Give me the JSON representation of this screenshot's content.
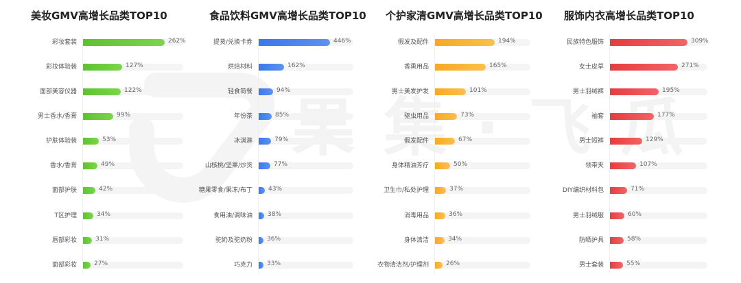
{
  "watermark": {
    "text": "果集·飞瓜",
    "logo_icon": "guoji-feigua-logo-icon"
  },
  "panels": [
    {
      "title": "美妆GMV高增长品类TOP10",
      "color_start": "#5dc12f",
      "color_end": "#7ad64a",
      "items": [
        {
          "label": "彩妆套装",
          "value": "262%"
        },
        {
          "label": "彩妆体验装",
          "value": "127%"
        },
        {
          "label": "面部美容仪器",
          "value": "122%"
        },
        {
          "label": "男士香水/香膏",
          "value": "99%"
        },
        {
          "label": "护肤体验装",
          "value": "53%"
        },
        {
          "label": "香水/香膏",
          "value": "49%"
        },
        {
          "label": "面部护肤",
          "value": "42%"
        },
        {
          "label": "T区护理",
          "value": "34%"
        },
        {
          "label": "唇部彩妆",
          "value": "31%"
        },
        {
          "label": "面部彩妆",
          "value": "27%"
        }
      ]
    },
    {
      "title": "食品饮料GMV高增长品类TOP10",
      "color_start": "#3a78e8",
      "color_end": "#5b93f0",
      "items": [
        {
          "label": "提货/兑换卡券",
          "value": "446%"
        },
        {
          "label": "烘焙材料",
          "value": "162%"
        },
        {
          "label": "轻食简餐",
          "value": "94%"
        },
        {
          "label": "年份茶",
          "value": "85%"
        },
        {
          "label": "冰淇淋",
          "value": "79%"
        },
        {
          "label": "山核桃/坚果/炒货",
          "value": "77%"
        },
        {
          "label": "糖果零食/果冻/布丁",
          "value": "43%"
        },
        {
          "label": "食用油/调味油",
          "value": "38%"
        },
        {
          "label": "驼奶及驼奶粉",
          "value": "36%"
        },
        {
          "label": "巧克力",
          "value": "33%"
        }
      ]
    },
    {
      "title": "个护家清GMV高增长品类TOP10",
      "color_start": "#f7a823",
      "color_end": "#fbc04e",
      "items": [
        {
          "label": "假发及配件",
          "value": "194%"
        },
        {
          "label": "香熏用品",
          "value": "165%"
        },
        {
          "label": "男士美发护发",
          "value": "101%"
        },
        {
          "label": "驱虫用品",
          "value": "73%"
        },
        {
          "label": "假发配件",
          "value": "67%"
        },
        {
          "label": "身体精油芳疗",
          "value": "50%"
        },
        {
          "label": "卫生巾/私处护理",
          "value": "37%"
        },
        {
          "label": "消毒用品",
          "value": "36%"
        },
        {
          "label": "身体清洁",
          "value": "34%"
        },
        {
          "label": "衣物清洁剂/护理剂",
          "value": "26%"
        }
      ]
    },
    {
      "title": "服饰内衣高增长品类TOP10",
      "color_start": "#e63b3f",
      "color_end": "#f26466",
      "items": [
        {
          "label": "民族特色服饰",
          "value": "309%"
        },
        {
          "label": "女士皮草",
          "value": "271%"
        },
        {
          "label": "男士羽绒裤",
          "value": "195%"
        },
        {
          "label": "袖套",
          "value": "177%"
        },
        {
          "label": "男士短裤",
          "value": "129%"
        },
        {
          "label": "领带夹",
          "value": "107%"
        },
        {
          "label": "DIY编织材料包",
          "value": "71%"
        },
        {
          "label": "男士羽绒服",
          "value": "60%"
        },
        {
          "label": "防晒护具",
          "value": "58%"
        },
        {
          "label": "男士套装",
          "value": "55%"
        }
      ]
    }
  ],
  "chart_data": [
    {
      "type": "bar",
      "orientation": "horizontal",
      "title": "美妆GMV高增长品类TOP10",
      "categories": [
        "彩妆套装",
        "彩妆体验装",
        "面部美容仪器",
        "男士香水/香膏",
        "护肤体验装",
        "香水/香膏",
        "面部护肤",
        "T区护理",
        "唇部彩妆",
        "面部彩妆"
      ],
      "values": [
        262,
        127,
        122,
        99,
        53,
        49,
        42,
        34,
        31,
        27
      ],
      "unit": "%",
      "xlabel": "",
      "ylabel": "",
      "grid": false,
      "color": "#5dc12f"
    },
    {
      "type": "bar",
      "orientation": "horizontal",
      "title": "食品饮料GMV高增长品类TOP10",
      "categories": [
        "提货/兑换卡券",
        "烘焙材料",
        "轻食简餐",
        "年份茶",
        "冰淇淋",
        "山核桃/坚果/炒货",
        "糖果零食/果冻/布丁",
        "食用油/调味油",
        "驼奶及驼奶粉",
        "巧克力"
      ],
      "values": [
        446,
        162,
        94,
        85,
        79,
        77,
        43,
        38,
        36,
        33
      ],
      "unit": "%",
      "xlabel": "",
      "ylabel": "",
      "grid": false,
      "color": "#3a78e8"
    },
    {
      "type": "bar",
      "orientation": "horizontal",
      "title": "个护家清GMV高增长品类TOP10",
      "categories": [
        "假发及配件",
        "香熏用品",
        "男士美发护发",
        "驱虫用品",
        "假发配件",
        "身体精油芳疗",
        "卫生巾/私处护理",
        "消毒用品",
        "身体清洁",
        "衣物清洁剂/护理剂"
      ],
      "values": [
        194,
        165,
        101,
        73,
        67,
        50,
        37,
        36,
        34,
        26
      ],
      "unit": "%",
      "xlabel": "",
      "ylabel": "",
      "grid": false,
      "color": "#f7a823"
    },
    {
      "type": "bar",
      "orientation": "horizontal",
      "title": "服饰内衣高增长品类TOP10",
      "categories": [
        "民族特色服饰",
        "女士皮草",
        "男士羽绒裤",
        "袖套",
        "男士短裤",
        "领带夹",
        "DIY编织材料包",
        "男士羽绒服",
        "防晒护具",
        "男士套装"
      ],
      "values": [
        309,
        271,
        195,
        177,
        129,
        107,
        71,
        60,
        58,
        55
      ],
      "unit": "%",
      "xlabel": "",
      "ylabel": "",
      "grid": false,
      "color": "#e63b3f"
    }
  ]
}
